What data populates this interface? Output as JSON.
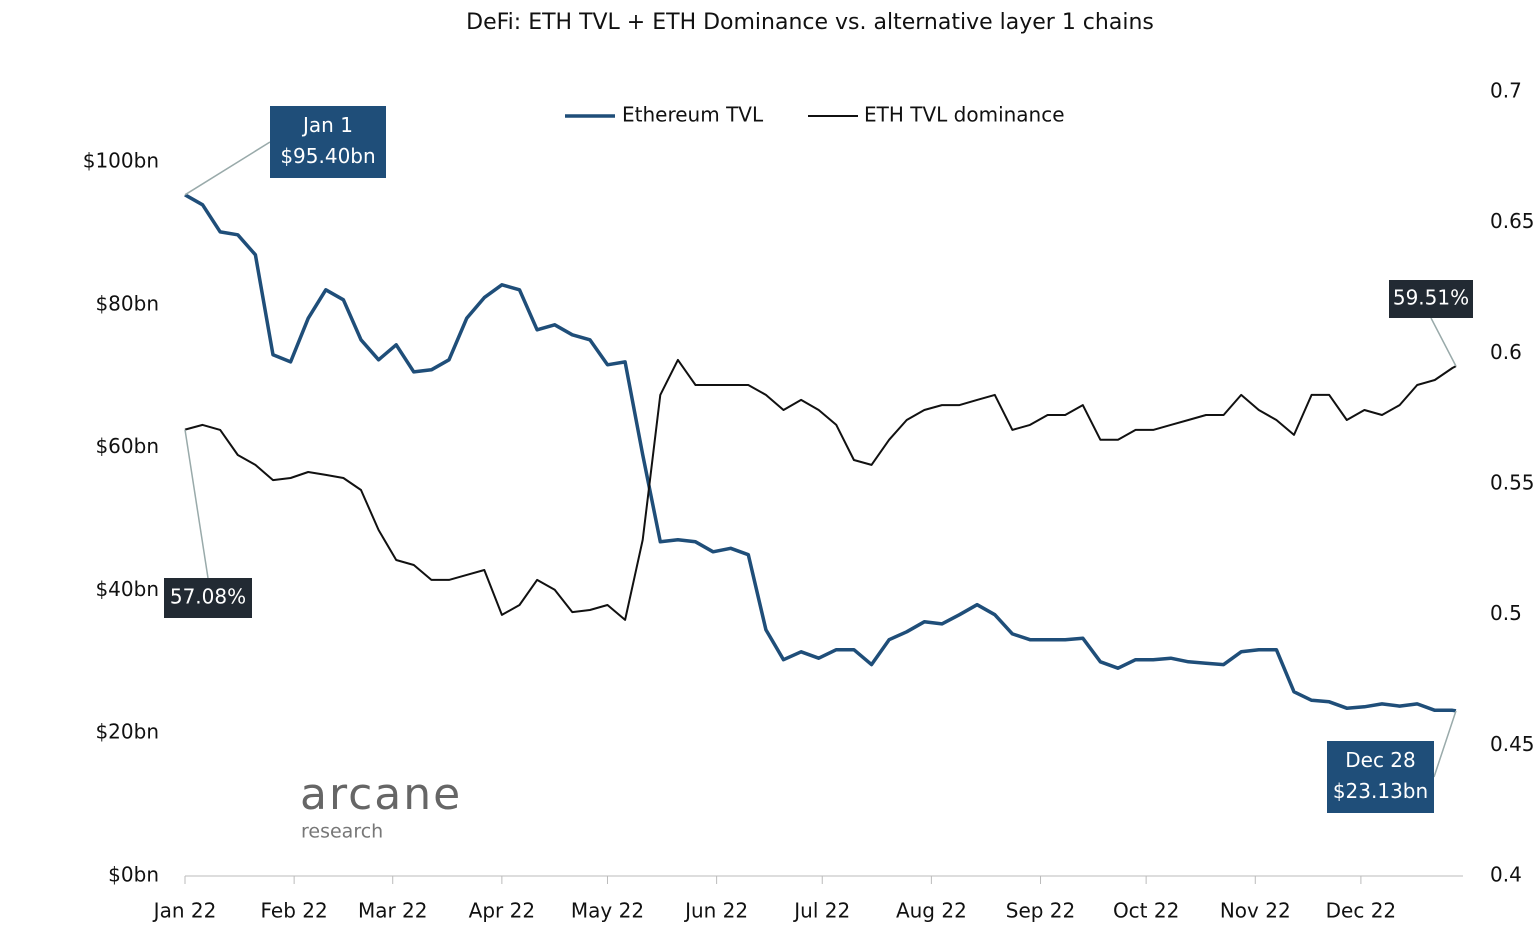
{
  "chart_data": {
    "type": "line",
    "title": "DeFi: ETH TVL + ETH Dominance vs. alternative layer 1 chains",
    "x": [
      1,
      6,
      11,
      16,
      21,
      26,
      31,
      36,
      41,
      46,
      51,
      56,
      61,
      66,
      71,
      76,
      81,
      86,
      91,
      96,
      101,
      106,
      111,
      116,
      121,
      126,
      131,
      136,
      141,
      146,
      151,
      156,
      161,
      166,
      171,
      176,
      181,
      186,
      191,
      196,
      201,
      206,
      211,
      216,
      221,
      226,
      231,
      236,
      241,
      246,
      251,
      256,
      261,
      266,
      271,
      276,
      281,
      286,
      291,
      296,
      301,
      306,
      311,
      316,
      321,
      326,
      331,
      336,
      341,
      346,
      351,
      356,
      361,
      362
    ],
    "xlim": [
      1,
      364
    ],
    "xticks": [
      {
        "value": 1,
        "label": "Jan 22"
      },
      {
        "value": 32,
        "label": "Feb 22"
      },
      {
        "value": 60,
        "label": "Mar 22"
      },
      {
        "value": 91,
        "label": "Apr 22"
      },
      {
        "value": 121,
        "label": "May 22"
      },
      {
        "value": 152,
        "label": "Jun 22"
      },
      {
        "value": 182,
        "label": "Jul 22"
      },
      {
        "value": 213,
        "label": "Aug 22"
      },
      {
        "value": 244,
        "label": "Sep 22"
      },
      {
        "value": 274,
        "label": "Oct 22"
      },
      {
        "value": 305,
        "label": "Nov 22"
      },
      {
        "value": 335,
        "label": "Dec 22"
      }
    ],
    "ylim": [
      0,
      109.8
    ],
    "yticks": [
      {
        "value": 0,
        "label": "$0bn"
      },
      {
        "value": 20,
        "label": "$20bn"
      },
      {
        "value": 40,
        "label": "$40bn"
      },
      {
        "value": 60,
        "label": "$60bn"
      },
      {
        "value": 80,
        "label": "$80bn"
      },
      {
        "value": 100,
        "label": "$100bn"
      }
    ],
    "y2lim": [
      0.4,
      0.7
    ],
    "y2ticks": [
      0.4,
      0.45,
      0.5,
      0.55,
      0.6,
      0.65,
      0.7
    ],
    "series": [
      {
        "name": "Ethereum TVL",
        "color": "#1f4e79",
        "values": [
          95.4,
          94.0,
          90.2,
          89.8,
          87.0,
          73.0,
          72.0,
          78.1,
          82.1,
          80.7,
          75.1,
          72.3,
          74.4,
          70.6,
          70.9,
          72.3,
          78.1,
          81.0,
          82.8,
          82.1,
          76.5,
          77.2,
          75.8,
          75.1,
          71.6,
          72.0,
          59.0,
          46.8,
          47.1,
          46.8,
          45.4,
          45.9,
          45.0,
          34.5,
          30.3,
          31.4,
          30.5,
          31.7,
          31.7,
          29.6,
          33.1,
          34.2,
          35.6,
          35.3,
          36.6,
          38.0,
          36.6,
          33.9,
          33.1,
          33.1,
          33.1,
          33.3,
          30.0,
          29.1,
          30.3,
          30.3,
          30.5,
          30.0,
          29.8,
          29.6,
          31.4,
          31.7,
          31.7,
          25.8,
          24.6,
          24.4,
          23.5,
          23.7,
          24.1,
          23.8,
          24.1,
          23.2,
          23.2,
          23.13
        ]
      },
      {
        "name": "ETH TVL dominance",
        "color": "#111111",
        "axis": "y2",
        "values": [
          0.5708,
          0.5726,
          0.5707,
          0.5611,
          0.5573,
          0.5515,
          0.5523,
          0.5546,
          0.5535,
          0.5523,
          0.5477,
          0.5324,
          0.5209,
          0.519,
          0.5133,
          0.5133,
          0.5152,
          0.5171,
          0.4999,
          0.5037,
          0.5133,
          0.5095,
          0.501,
          0.5018,
          0.5037,
          0.498,
          0.5286,
          0.5841,
          0.5975,
          0.5879,
          0.5879,
          0.5879,
          0.5879,
          0.5841,
          0.5783,
          0.5822,
          0.5783,
          0.5726,
          0.5592,
          0.5573,
          0.5669,
          0.5745,
          0.5783,
          0.5802,
          0.5802,
          0.5822,
          0.5841,
          0.5707,
          0.5726,
          0.5764,
          0.5764,
          0.5802,
          0.5669,
          0.5669,
          0.5707,
          0.5707,
          0.5726,
          0.5745,
          0.5764,
          0.5764,
          0.5841,
          0.5783,
          0.5745,
          0.5688,
          0.5841,
          0.5841,
          0.5745,
          0.5783,
          0.5764,
          0.5802,
          0.5879,
          0.5898,
          0.5944,
          0.5951
        ]
      }
    ],
    "annotations": [
      {
        "lines": [
          "Jan 1",
          "$95.40bn"
        ]
      },
      {
        "lines": [
          "57.08%"
        ]
      },
      {
        "lines": [
          "59.51%"
        ]
      },
      {
        "lines": [
          "Dec 28",
          "$23.13bn"
        ]
      }
    ],
    "logo": {
      "name": "arcane",
      "tagline": "research"
    }
  }
}
